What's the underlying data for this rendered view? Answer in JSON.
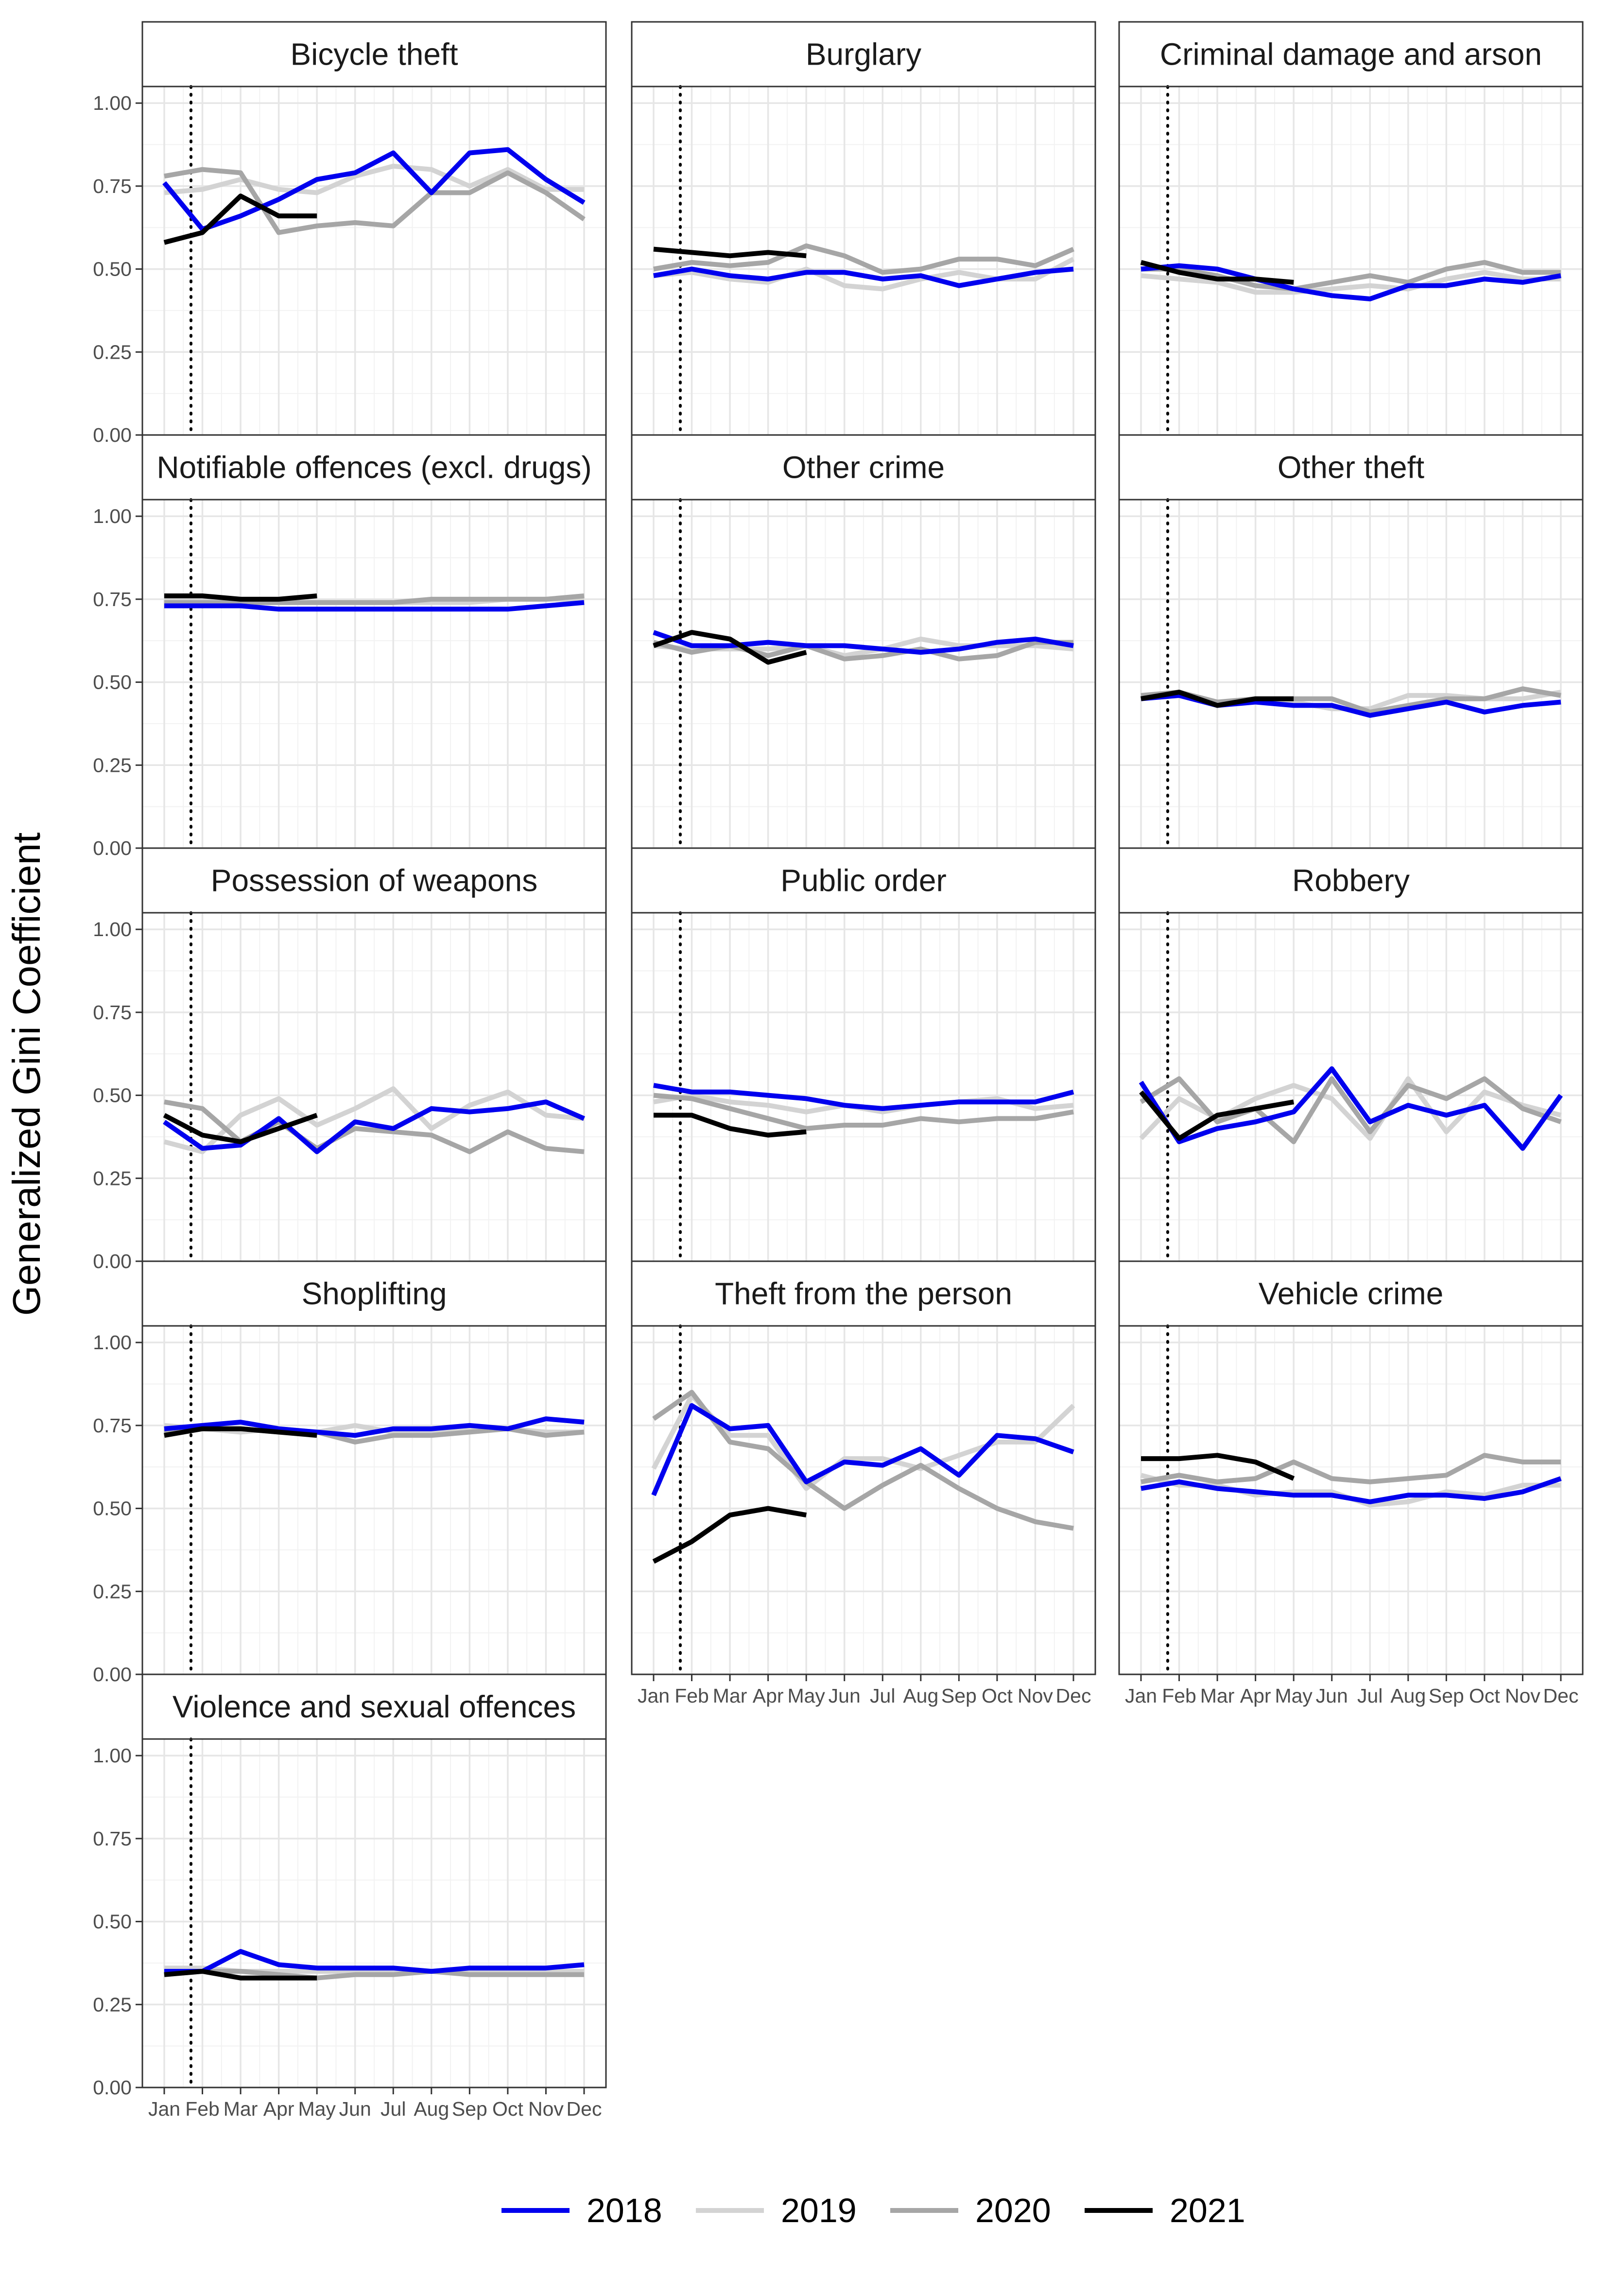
{
  "chart_data": {
    "type": "line",
    "title": "",
    "xlabel": "",
    "ylabel": "Generalized Gini Coefficient",
    "ylim": [
      0,
      1.05
    ],
    "yticks": [
      "0.00",
      "0.25",
      "0.50",
      "0.75",
      "1.00"
    ],
    "months": [
      "Jan",
      "Feb",
      "Mar",
      "Apr",
      "May",
      "Jun",
      "Jul",
      "Aug",
      "Sep",
      "Oct",
      "Nov",
      "Dec"
    ],
    "reference_line": {
      "style": "dotted",
      "x": 1.7
    },
    "grid": true,
    "legend": {
      "position": "bottom",
      "entries": [
        {
          "name": "2018",
          "color": "#0000ee"
        },
        {
          "name": "2019",
          "color": "#d3d3d3"
        },
        {
          "name": "2020",
          "color": "#a6a6a6"
        },
        {
          "name": "2021",
          "color": "#000000"
        }
      ]
    },
    "panels": [
      {
        "title": "Bicycle theft",
        "series": [
          {
            "name": "2018",
            "values": [
              0.76,
              0.62,
              0.66,
              0.71,
              0.77,
              0.79,
              0.85,
              0.73,
              0.85,
              0.86,
              0.77,
              0.7
            ]
          },
          {
            "name": "2019",
            "values": [
              0.73,
              0.74,
              0.77,
              0.74,
              0.73,
              0.78,
              0.81,
              0.8,
              0.75,
              0.8,
              0.74,
              0.74
            ]
          },
          {
            "name": "2020",
            "values": [
              0.78,
              0.8,
              0.79,
              0.61,
              0.63,
              0.64,
              0.63,
              0.73,
              0.73,
              0.79,
              0.73,
              0.65
            ]
          },
          {
            "name": "2021",
            "values": [
              0.58,
              0.61,
              0.72,
              0.66,
              0.66
            ]
          }
        ]
      },
      {
        "title": "Burglary",
        "series": [
          {
            "name": "2018",
            "values": [
              0.48,
              0.5,
              0.48,
              0.47,
              0.49,
              0.49,
              0.47,
              0.48,
              0.45,
              0.47,
              0.49,
              0.5
            ]
          },
          {
            "name": "2019",
            "values": [
              0.48,
              0.49,
              0.47,
              0.46,
              0.5,
              0.45,
              0.44,
              0.47,
              0.49,
              0.47,
              0.47,
              0.53
            ]
          },
          {
            "name": "2020",
            "values": [
              0.5,
              0.52,
              0.51,
              0.52,
              0.57,
              0.54,
              0.49,
              0.5,
              0.53,
              0.53,
              0.51,
              0.56
            ]
          },
          {
            "name": "2021",
            "values": [
              0.56,
              0.55,
              0.54,
              0.55,
              0.54
            ]
          }
        ]
      },
      {
        "title": "Criminal damage and arson",
        "series": [
          {
            "name": "2018",
            "values": [
              0.5,
              0.51,
              0.5,
              0.47,
              0.44,
              0.42,
              0.41,
              0.45,
              0.45,
              0.47,
              0.46,
              0.48
            ]
          },
          {
            "name": "2019",
            "values": [
              0.48,
              0.47,
              0.46,
              0.43,
              0.43,
              0.44,
              0.45,
              0.44,
              0.47,
              0.49,
              0.47,
              0.47
            ]
          },
          {
            "name": "2020",
            "values": [
              0.5,
              0.5,
              0.48,
              0.45,
              0.44,
              0.46,
              0.48,
              0.46,
              0.5,
              0.52,
              0.49,
              0.49
            ]
          },
          {
            "name": "2021",
            "values": [
              0.52,
              0.49,
              0.47,
              0.47,
              0.46
            ]
          }
        ]
      },
      {
        "title": "Notifiable offences (excl. drugs)",
        "series": [
          {
            "name": "2018",
            "values": [
              0.73,
              0.73,
              0.73,
              0.72,
              0.72,
              0.72,
              0.72,
              0.72,
              0.72,
              0.72,
              0.73,
              0.74
            ]
          },
          {
            "name": "2019",
            "values": [
              0.75,
              0.75,
              0.74,
              0.74,
              0.74,
              0.74,
              0.74,
              0.74,
              0.74,
              0.75,
              0.75,
              0.75
            ]
          },
          {
            "name": "2020",
            "values": [
              0.74,
              0.74,
              0.74,
              0.74,
              0.74,
              0.74,
              0.74,
              0.75,
              0.75,
              0.75,
              0.75,
              0.76
            ]
          },
          {
            "name": "2021",
            "values": [
              0.76,
              0.76,
              0.75,
              0.75,
              0.76
            ]
          }
        ]
      },
      {
        "title": "Other crime",
        "series": [
          {
            "name": "2018",
            "values": [
              0.65,
              0.61,
              0.61,
              0.62,
              0.61,
              0.61,
              0.6,
              0.59,
              0.6,
              0.62,
              0.63,
              0.61
            ]
          },
          {
            "name": "2019",
            "values": [
              0.61,
              0.6,
              0.6,
              0.6,
              0.61,
              0.58,
              0.6,
              0.63,
              0.61,
              0.61,
              0.61,
              0.6
            ]
          },
          {
            "name": "2020",
            "values": [
              0.62,
              0.59,
              0.61,
              0.58,
              0.61,
              0.57,
              0.58,
              0.6,
              0.57,
              0.58,
              0.62,
              0.62
            ]
          },
          {
            "name": "2021",
            "values": [
              0.61,
              0.65,
              0.63,
              0.56,
              0.59
            ]
          }
        ]
      },
      {
        "title": "Other theft",
        "series": [
          {
            "name": "2018",
            "values": [
              0.45,
              0.46,
              0.43,
              0.44,
              0.43,
              0.43,
              0.4,
              0.42,
              0.44,
              0.41,
              0.43,
              0.44
            ]
          },
          {
            "name": "2019",
            "values": [
              0.45,
              0.47,
              0.44,
              0.44,
              0.44,
              0.42,
              0.42,
              0.46,
              0.46,
              0.45,
              0.45,
              0.47
            ]
          },
          {
            "name": "2020",
            "values": [
              0.46,
              0.47,
              0.44,
              0.45,
              0.45,
              0.45,
              0.41,
              0.43,
              0.45,
              0.45,
              0.48,
              0.46
            ]
          },
          {
            "name": "2021",
            "values": [
              0.45,
              0.47,
              0.43,
              0.45,
              0.45
            ]
          }
        ]
      },
      {
        "title": "Possession of weapons",
        "series": [
          {
            "name": "2018",
            "values": [
              0.42,
              0.34,
              0.35,
              0.43,
              0.33,
              0.42,
              0.4,
              0.46,
              0.45,
              0.46,
              0.48,
              0.43
            ]
          },
          {
            "name": "2019",
            "values": [
              0.36,
              0.33,
              0.44,
              0.49,
              0.41,
              0.46,
              0.52,
              0.4,
              0.47,
              0.51,
              0.44,
              0.43
            ]
          },
          {
            "name": "2020",
            "values": [
              0.48,
              0.46,
              0.36,
              0.42,
              0.34,
              0.4,
              0.39,
              0.38,
              0.33,
              0.39,
              0.34,
              0.33
            ]
          },
          {
            "name": "2021",
            "values": [
              0.44,
              0.38,
              0.36,
              0.4,
              0.44
            ]
          }
        ]
      },
      {
        "title": "Public order",
        "series": [
          {
            "name": "2018",
            "values": [
              0.53,
              0.51,
              0.51,
              0.5,
              0.49,
              0.47,
              0.46,
              0.47,
              0.48,
              0.48,
              0.48,
              0.51
            ]
          },
          {
            "name": "2019",
            "values": [
              0.48,
              0.5,
              0.48,
              0.47,
              0.45,
              0.47,
              0.45,
              0.47,
              0.48,
              0.49,
              0.46,
              0.47
            ]
          },
          {
            "name": "2020",
            "values": [
              0.5,
              0.49,
              0.46,
              0.43,
              0.4,
              0.41,
              0.41,
              0.43,
              0.42,
              0.43,
              0.43,
              0.45
            ]
          },
          {
            "name": "2021",
            "values": [
              0.44,
              0.44,
              0.4,
              0.38,
              0.39
            ]
          }
        ]
      },
      {
        "title": "Robbery",
        "series": [
          {
            "name": "2018",
            "values": [
              0.54,
              0.36,
              0.4,
              0.42,
              0.45,
              0.58,
              0.42,
              0.47,
              0.44,
              0.47,
              0.34,
              0.5
            ]
          },
          {
            "name": "2019",
            "values": [
              0.37,
              0.49,
              0.43,
              0.49,
              0.53,
              0.49,
              0.37,
              0.55,
              0.39,
              0.51,
              0.47,
              0.44
            ]
          },
          {
            "name": "2020",
            "values": [
              0.48,
              0.55,
              0.42,
              0.46,
              0.36,
              0.55,
              0.39,
              0.53,
              0.49,
              0.55,
              0.46,
              0.42
            ]
          },
          {
            "name": "2021",
            "values": [
              0.51,
              0.37,
              0.44,
              0.46,
              0.48
            ]
          }
        ]
      },
      {
        "title": "Shoplifting",
        "series": [
          {
            "name": "2018",
            "values": [
              0.74,
              0.75,
              0.76,
              0.74,
              0.73,
              0.72,
              0.74,
              0.74,
              0.75,
              0.74,
              0.77,
              0.76
            ]
          },
          {
            "name": "2019",
            "values": [
              0.75,
              0.74,
              0.73,
              0.74,
              0.73,
              0.75,
              0.73,
              0.73,
              0.74,
              0.74,
              0.73,
              0.73
            ]
          },
          {
            "name": "2020",
            "values": [
              0.73,
              0.74,
              0.74,
              0.73,
              0.73,
              0.7,
              0.72,
              0.72,
              0.73,
              0.74,
              0.72,
              0.73
            ]
          },
          {
            "name": "2021",
            "values": [
              0.72,
              0.74,
              0.74,
              0.73,
              0.72
            ]
          }
        ]
      },
      {
        "title": "Theft from the person",
        "series": [
          {
            "name": "2018",
            "values": [
              0.54,
              0.81,
              0.74,
              0.75,
              0.58,
              0.64,
              0.63,
              0.68,
              0.6,
              0.72,
              0.71,
              0.67
            ]
          },
          {
            "name": "2019",
            "values": [
              0.62,
              0.84,
              0.72,
              0.72,
              0.56,
              0.65,
              0.65,
              0.62,
              0.66,
              0.7,
              0.7,
              0.81
            ]
          },
          {
            "name": "2020",
            "values": [
              0.77,
              0.85,
              0.7,
              0.68,
              0.58,
              0.5,
              0.57,
              0.63,
              0.56,
              0.5,
              0.46,
              0.44
            ]
          },
          {
            "name": "2021",
            "values": [
              0.34,
              0.4,
              0.48,
              0.5,
              0.48
            ]
          }
        ]
      },
      {
        "title": "Vehicle crime",
        "series": [
          {
            "name": "2018",
            "values": [
              0.56,
              0.58,
              0.56,
              0.55,
              0.54,
              0.54,
              0.52,
              0.54,
              0.54,
              0.53,
              0.55,
              0.59
            ]
          },
          {
            "name": "2019",
            "values": [
              0.6,
              0.57,
              0.57,
              0.54,
              0.55,
              0.55,
              0.51,
              0.52,
              0.55,
              0.54,
              0.57,
              0.57
            ]
          },
          {
            "name": "2020",
            "values": [
              0.58,
              0.6,
              0.58,
              0.59,
              0.64,
              0.59,
              0.58,
              0.59,
              0.6,
              0.66,
              0.64,
              0.64
            ]
          },
          {
            "name": "2021",
            "values": [
              0.65,
              0.65,
              0.66,
              0.64,
              0.59
            ]
          }
        ]
      },
      {
        "title": "Violence and sexual offences",
        "series": [
          {
            "name": "2018",
            "values": [
              0.35,
              0.35,
              0.41,
              0.37,
              0.36,
              0.36,
              0.36,
              0.35,
              0.36,
              0.36,
              0.36,
              0.37
            ]
          },
          {
            "name": "2019",
            "values": [
              0.36,
              0.36,
              0.35,
              0.35,
              0.35,
              0.35,
              0.35,
              0.35,
              0.35,
              0.35,
              0.35,
              0.35
            ]
          },
          {
            "name": "2020",
            "values": [
              0.34,
              0.35,
              0.35,
              0.34,
              0.33,
              0.34,
              0.34,
              0.35,
              0.34,
              0.34,
              0.34,
              0.34
            ]
          },
          {
            "name": "2021",
            "values": [
              0.34,
              0.35,
              0.33,
              0.33,
              0.33
            ]
          }
        ]
      }
    ]
  }
}
